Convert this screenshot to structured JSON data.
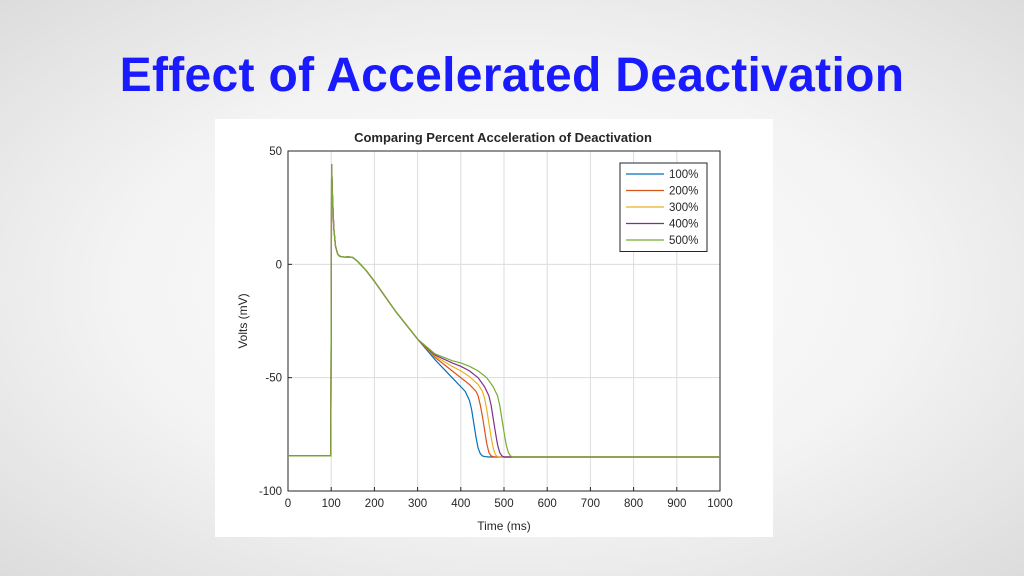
{
  "slide": {
    "title": "Effect of Accelerated Deactivation",
    "title_color": "#1a1aff"
  },
  "chart_data": {
    "type": "line",
    "title": "Comparing Percent Acceleration of Deactivation",
    "xlabel": "Time (ms)",
    "ylabel": "Volts (mV)",
    "xlim": [
      0,
      1000
    ],
    "ylim": [
      -100,
      50
    ],
    "xticks": [
      0,
      100,
      200,
      300,
      400,
      500,
      600,
      700,
      800,
      900,
      1000
    ],
    "yticks": [
      -100,
      -50,
      0,
      50
    ],
    "grid": true,
    "legend_position": "top-right",
    "series": [
      {
        "name": "100%",
        "color": "#0072bd",
        "x": [
          0,
          99,
          101,
          103,
          106,
          110,
          115,
          120,
          130,
          140,
          150,
          160,
          180,
          200,
          250,
          300,
          340,
          380,
          400,
          410,
          420,
          425,
          430,
          435,
          440,
          445,
          450,
          455,
          460,
          465,
          470,
          480,
          500,
          600,
          700,
          800,
          900,
          1000
        ],
        "y": [
          -84.5,
          -84.5,
          44,
          30,
          16,
          8,
          4.5,
          3.5,
          3.2,
          3.3,
          3,
          1.5,
          -2.5,
          -7.5,
          -21,
          -33,
          -42,
          -50,
          -54,
          -56,
          -60,
          -64,
          -70,
          -76,
          -81,
          -83.5,
          -84.5,
          -84.8,
          -84.9,
          -85,
          -85,
          -85,
          -85,
          -85,
          -85,
          -85,
          -85,
          -85
        ]
      },
      {
        "name": "200%",
        "color": "#d95319",
        "x": [
          0,
          99,
          101,
          103,
          106,
          110,
          115,
          120,
          130,
          140,
          150,
          160,
          180,
          200,
          250,
          300,
          340,
          380,
          400,
          420,
          435,
          440,
          445,
          450,
          455,
          460,
          465,
          470,
          475,
          480,
          490,
          500,
          600,
          700,
          800,
          900,
          1000
        ],
        "y": [
          -84.5,
          -84.5,
          44,
          30,
          16,
          8,
          4.5,
          3.5,
          3.2,
          3.3,
          3,
          1.5,
          -2.5,
          -7.5,
          -21,
          -33,
          -41,
          -47,
          -50,
          -53,
          -56,
          -58,
          -62,
          -67,
          -73,
          -79,
          -83,
          -84.5,
          -84.8,
          -85,
          -85,
          -85,
          -85,
          -85,
          -85,
          -85,
          -85
        ]
      },
      {
        "name": "300%",
        "color": "#edb120",
        "x": [
          0,
          99,
          101,
          103,
          106,
          110,
          115,
          120,
          130,
          140,
          150,
          160,
          180,
          200,
          250,
          300,
          340,
          380,
          400,
          420,
          440,
          450,
          455,
          460,
          465,
          470,
          475,
          480,
          485,
          490,
          500,
          600,
          700,
          800,
          900,
          1000
        ],
        "y": [
          -84.5,
          -84.5,
          44,
          30,
          16,
          8,
          4.5,
          3.5,
          3.2,
          3.3,
          3,
          1.5,
          -2.5,
          -7.5,
          -21,
          -33,
          -40.5,
          -45,
          -47,
          -49.5,
          -53,
          -56,
          -59,
          -64,
          -70,
          -76,
          -81,
          -84,
          -84.8,
          -85,
          -85,
          -85,
          -85,
          -85,
          -85,
          -85
        ]
      },
      {
        "name": "400%",
        "color": "#7e2f8e",
        "x": [
          0,
          99,
          101,
          103,
          106,
          110,
          115,
          120,
          130,
          140,
          150,
          160,
          180,
          200,
          250,
          300,
          340,
          380,
          400,
          420,
          440,
          455,
          465,
          470,
          475,
          480,
          485,
          490,
          495,
          500,
          510,
          600,
          700,
          800,
          900,
          1000
        ],
        "y": [
          -84.5,
          -84.5,
          44,
          30,
          16,
          8,
          4.5,
          3.5,
          3.2,
          3.3,
          3,
          1.5,
          -2.5,
          -7.5,
          -21,
          -33,
          -40,
          -43.5,
          -45,
          -47,
          -50,
          -54,
          -58,
          -62,
          -68,
          -74,
          -79.5,
          -83,
          -84.5,
          -85,
          -85,
          -85,
          -85,
          -85,
          -85,
          -85
        ]
      },
      {
        "name": "500%",
        "color": "#77ac30",
        "x": [
          0,
          99,
          101,
          103,
          106,
          110,
          115,
          120,
          130,
          140,
          150,
          160,
          180,
          200,
          250,
          300,
          340,
          380,
          400,
          420,
          440,
          460,
          475,
          485,
          490,
          495,
          500,
          505,
          510,
          515,
          520,
          530,
          600,
          700,
          800,
          900,
          1000
        ],
        "y": [
          -84.5,
          -84.5,
          44,
          30,
          16,
          8,
          4.5,
          3.5,
          3.2,
          3.3,
          3,
          1.5,
          -2.5,
          -7.5,
          -21,
          -33,
          -39.5,
          -42.5,
          -43.5,
          -45,
          -47,
          -50,
          -54,
          -58,
          -62,
          -68,
          -74,
          -79.5,
          -83,
          -84.5,
          -85,
          -85,
          -85,
          -85,
          -85,
          -85,
          -85
        ]
      }
    ]
  }
}
